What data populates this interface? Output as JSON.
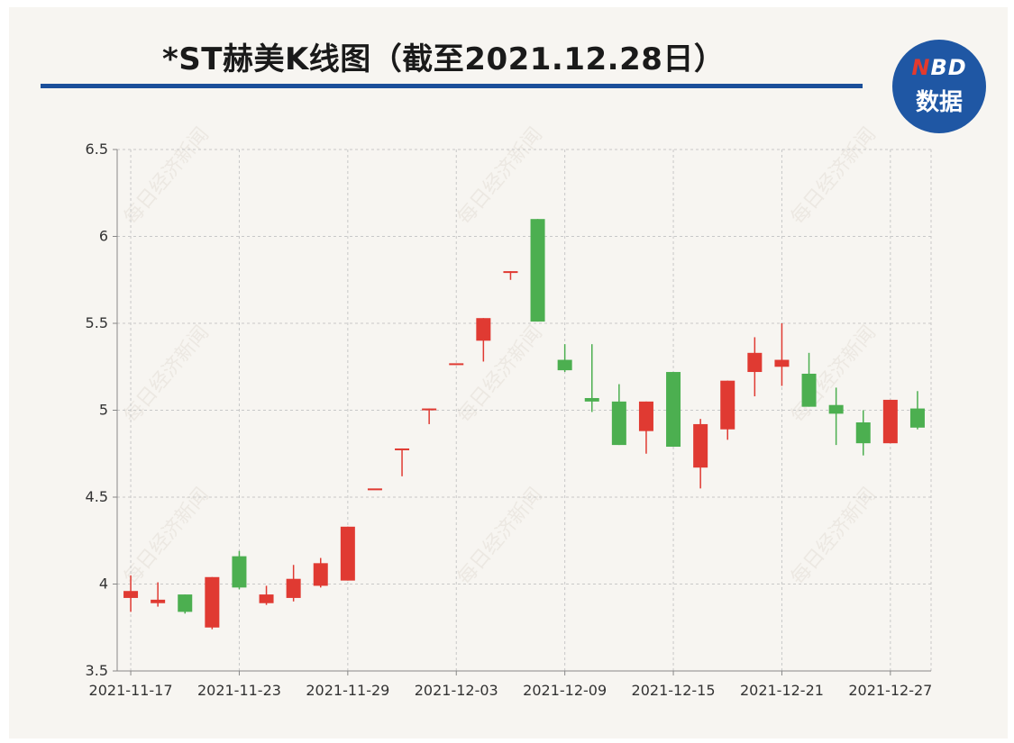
{
  "header": {
    "title": "*ST赫美K线图（截至2021.12.28日）",
    "logo_line1_accent": "N",
    "logo_line1_rest": "BD",
    "logo_line2": "数据"
  },
  "watermark_text": "每日经济新闻",
  "chart_data": {
    "type": "candlestick",
    "title": "*ST赫美K线图（截至2021.12.28日）",
    "ylim": [
      3.5,
      6.5
    ],
    "yticks": [
      3.5,
      4,
      4.5,
      5,
      5.5,
      6,
      6.5
    ],
    "ytick_labels": [
      "3.5",
      "4",
      "4.5",
      "5",
      "5.5",
      "6",
      "6.5"
    ],
    "x_tick_labels": [
      "2021-11-17",
      "2021-11-23",
      "2021-11-29",
      "2021-12-03",
      "2021-12-09",
      "2021-12-15",
      "2021-12-21",
      "2021-12-27"
    ],
    "x_tick_index": [
      0,
      4,
      8,
      12,
      16,
      20,
      24,
      28
    ],
    "grid": true,
    "colors": {
      "up": "#e03a32",
      "down": "#4caf50",
      "grid": "#c8c8c8",
      "axis": "#888888"
    },
    "candles": [
      {
        "date": "2021-11-17",
        "open": 3.92,
        "close": 3.96,
        "high": 4.05,
        "low": 3.84
      },
      {
        "date": "2021-11-18",
        "open": 3.89,
        "close": 3.91,
        "high": 4.01,
        "low": 3.87
      },
      {
        "date": "2021-11-19",
        "open": 3.94,
        "close": 3.84,
        "high": 3.94,
        "low": 3.83
      },
      {
        "date": "2021-11-22",
        "open": 3.75,
        "close": 4.04,
        "high": 4.04,
        "low": 3.74
      },
      {
        "date": "2021-11-23",
        "open": 4.16,
        "close": 3.98,
        "high": 4.19,
        "low": 3.97
      },
      {
        "date": "2021-11-24",
        "open": 3.89,
        "close": 3.94,
        "high": 3.99,
        "low": 3.88
      },
      {
        "date": "2021-11-25",
        "open": 3.92,
        "close": 4.03,
        "high": 4.11,
        "low": 3.9
      },
      {
        "date": "2021-11-26",
        "open": 3.99,
        "close": 4.12,
        "high": 4.15,
        "low": 3.98
      },
      {
        "date": "2021-11-29",
        "open": 4.02,
        "close": 4.33,
        "high": 4.33,
        "low": 4.02
      },
      {
        "date": "2021-11-30",
        "open": 4.55,
        "close": 4.55,
        "high": 4.55,
        "low": 4.55
      },
      {
        "date": "2021-12-01",
        "open": 4.78,
        "close": 4.78,
        "high": 4.78,
        "low": 4.62
      },
      {
        "date": "2021-12-02",
        "open": 5.01,
        "close": 5.01,
        "high": 5.01,
        "low": 4.92
      },
      {
        "date": "2021-12-03",
        "open": 5.27,
        "close": 5.27,
        "high": 5.27,
        "low": 5.27
      },
      {
        "date": "2021-12-06",
        "open": 5.4,
        "close": 5.53,
        "high": 5.53,
        "low": 5.28
      },
      {
        "date": "2021-12-07",
        "open": 5.8,
        "close": 5.8,
        "high": 5.8,
        "low": 5.75
      },
      {
        "date": "2021-12-08",
        "open": 6.1,
        "close": 5.51,
        "high": 6.1,
        "low": 5.51
      },
      {
        "date": "2021-12-09",
        "open": 5.29,
        "close": 5.23,
        "high": 5.38,
        "low": 5.22
      },
      {
        "date": "2021-12-10",
        "open": 5.07,
        "close": 5.05,
        "high": 5.38,
        "low": 4.99
      },
      {
        "date": "2021-12-13",
        "open": 5.05,
        "close": 4.8,
        "high": 5.15,
        "low": 4.8
      },
      {
        "date": "2021-12-14",
        "open": 4.88,
        "close": 5.05,
        "high": 5.05,
        "low": 4.75
      },
      {
        "date": "2021-12-15",
        "open": 5.22,
        "close": 4.79,
        "high": 5.22,
        "low": 4.79
      },
      {
        "date": "2021-12-16",
        "open": 4.67,
        "close": 4.92,
        "high": 4.95,
        "low": 4.55
      },
      {
        "date": "2021-12-17",
        "open": 4.89,
        "close": 5.17,
        "high": 5.17,
        "low": 4.83
      },
      {
        "date": "2021-12-20",
        "open": 5.22,
        "close": 5.33,
        "high": 5.42,
        "low": 5.08
      },
      {
        "date": "2021-12-21",
        "open": 5.25,
        "close": 5.29,
        "high": 5.5,
        "low": 5.14
      },
      {
        "date": "2021-12-22",
        "open": 5.21,
        "close": 5.02,
        "high": 5.33,
        "low": 5.02
      },
      {
        "date": "2021-12-23",
        "open": 5.03,
        "close": 4.98,
        "high": 5.13,
        "low": 4.8
      },
      {
        "date": "2021-12-24",
        "open": 4.93,
        "close": 4.81,
        "high": 5.0,
        "low": 4.74
      },
      {
        "date": "2021-12-27",
        "open": 4.81,
        "close": 5.06,
        "high": 5.06,
        "low": 4.81
      },
      {
        "date": "2021-12-28",
        "open": 5.01,
        "close": 4.9,
        "high": 5.11,
        "low": 4.89
      }
    ]
  }
}
